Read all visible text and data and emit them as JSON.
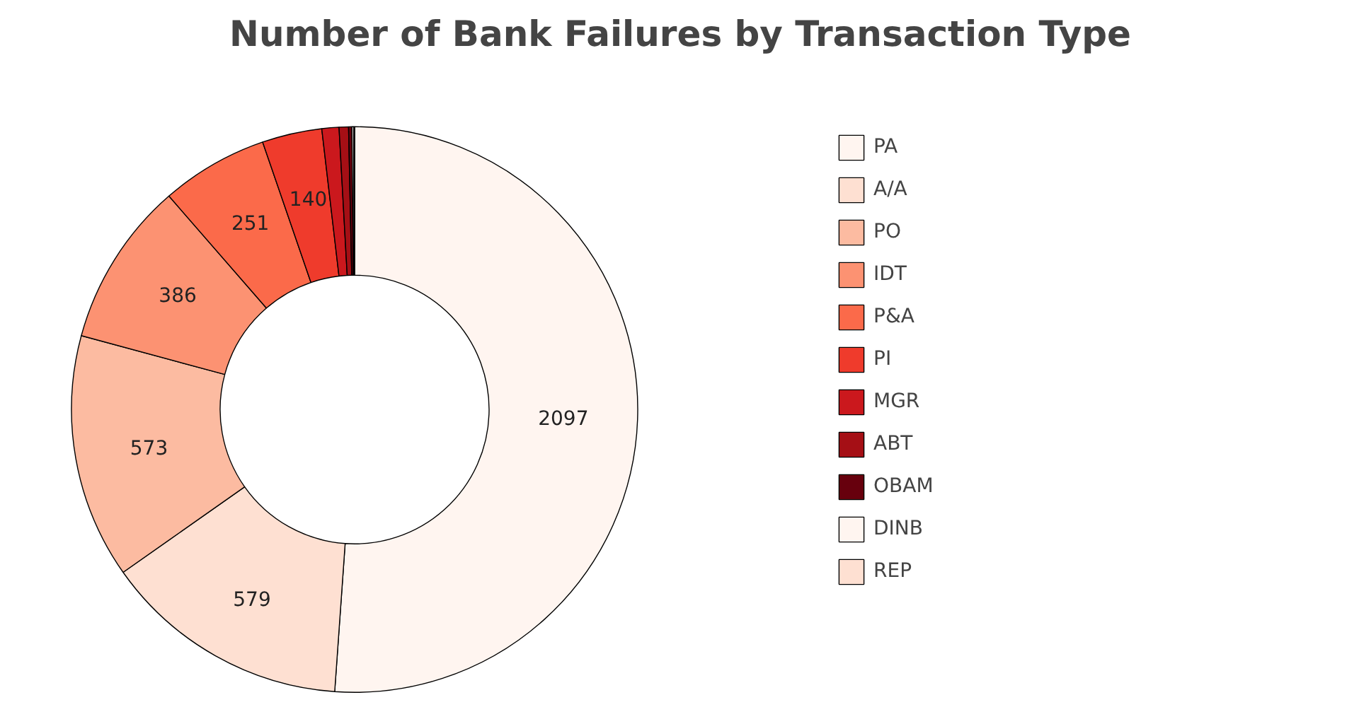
{
  "chart_data": {
    "type": "donut",
    "title": "Number of Bank Failures by Transaction Type",
    "categories": [
      "PA",
      "A/A",
      "PO",
      "IDT",
      "P&A",
      "PI",
      "MGR",
      "ABT",
      "OBAM",
      "DINB",
      "REP"
    ],
    "values": [
      2097,
      579,
      573,
      386,
      251,
      140,
      40,
      22,
      8,
      4,
      2
    ],
    "value_labels": [
      "2097",
      "579",
      "573",
      "386",
      "251",
      "140",
      null,
      null,
      null,
      null,
      null
    ],
    "colors": [
      "#fff5f0",
      "#fee0d2",
      "#fcbba1",
      "#fc9272",
      "#fb6a4a",
      "#ef3b2c",
      "#cb181d",
      "#a50f15",
      "#67000d",
      "#fff5f0",
      "#fee0d2"
    ],
    "legend": "right"
  }
}
